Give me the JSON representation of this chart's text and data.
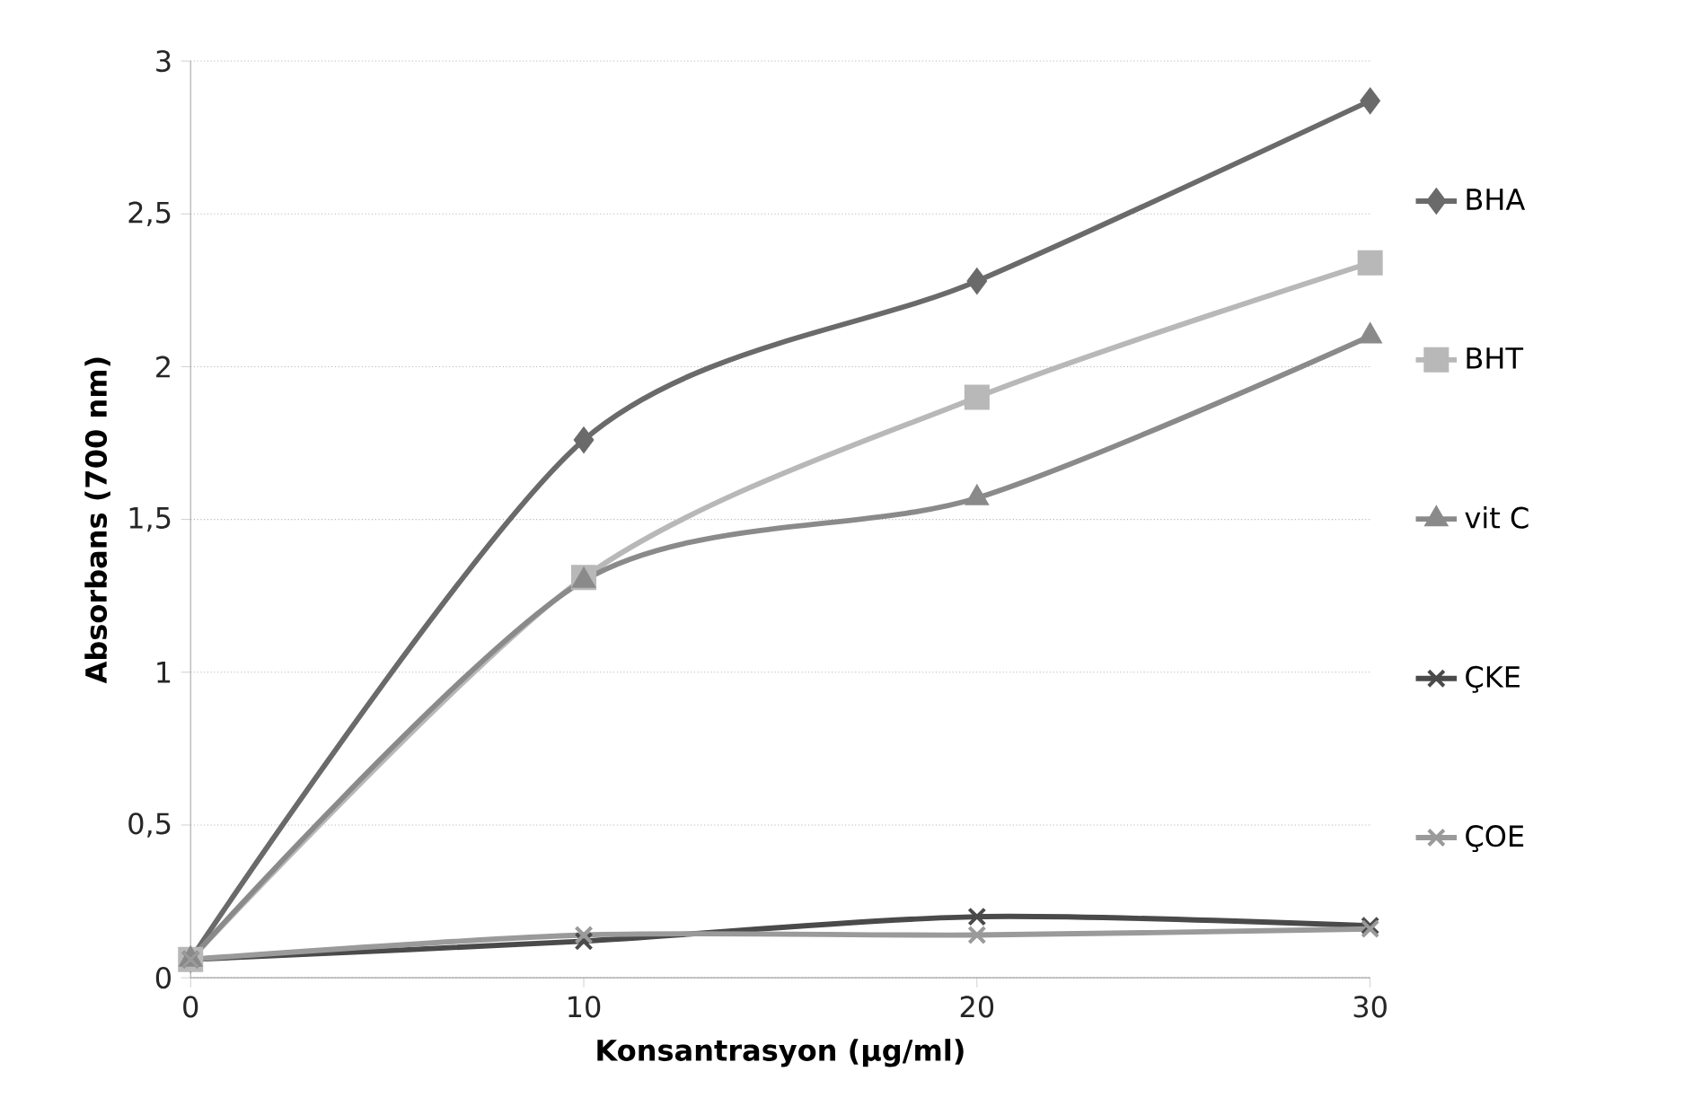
{
  "chart_data": {
    "type": "line",
    "xlabel": "Konsantrasyon (µg/ml)",
    "ylabel": "Absorbans (700 nm)",
    "x": [
      0,
      10,
      20,
      30
    ],
    "series": [
      {
        "name": "BHA",
        "color": "#6a6a6a",
        "marker": "diamond",
        "values": [
          0.06,
          1.76,
          2.28,
          2.87
        ]
      },
      {
        "name": "BHT",
        "color": "#b8b8b8",
        "marker": "square",
        "values": [
          0.06,
          1.31,
          1.9,
          2.34
        ]
      },
      {
        "name": "vit C",
        "color": "#8a8a8a",
        "marker": "triangle",
        "values": [
          0.06,
          1.3,
          1.57,
          2.1
        ]
      },
      {
        "name": "ÇKE",
        "color": "#4a4a4a",
        "marker": "cross",
        "values": [
          0.06,
          0.12,
          0.2,
          0.17
        ]
      },
      {
        "name": "ÇOE",
        "color": "#9a9a9a",
        "marker": "cross",
        "values": [
          0.06,
          0.14,
          0.14,
          0.16
        ]
      }
    ],
    "xlim": [
      0,
      30
    ],
    "xticks": [
      0,
      10,
      20,
      30
    ],
    "ylim": [
      0,
      3
    ],
    "yticks": [
      0,
      {
        "value": 0.5,
        "label": "0,5"
      },
      1,
      {
        "value": 1.5,
        "label": "1,5"
      },
      2,
      {
        "value": 2.5,
        "label": "2,5"
      },
      3
    ],
    "grid": "y",
    "legend": "right"
  }
}
